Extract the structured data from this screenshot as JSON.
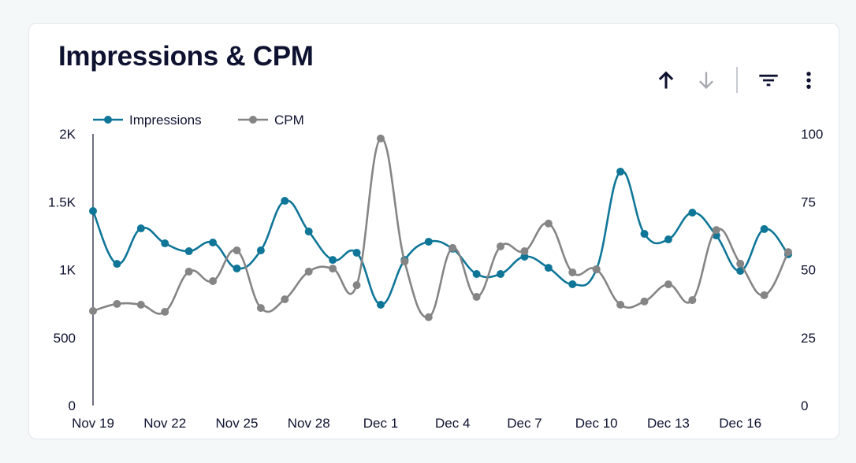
{
  "title": "Impressions & CPM",
  "toolbar": {
    "icons": [
      "arrow-up-icon",
      "arrow-down-icon",
      "filter-icon",
      "more-vert-icon"
    ]
  },
  "chart_data": {
    "type": "line",
    "title": "Impressions & CPM",
    "x": [
      "Nov 19",
      "Nov 20",
      "Nov 21",
      "Nov 22",
      "Nov 23",
      "Nov 24",
      "Nov 25",
      "Nov 26",
      "Nov 27",
      "Nov 28",
      "Nov 29",
      "Nov 30",
      "Dec 1",
      "Dec 2",
      "Dec 3",
      "Dec 4",
      "Dec 5",
      "Dec 6",
      "Dec 7",
      "Dec 8",
      "Dec 9",
      "Dec 10",
      "Dec 11",
      "Dec 12",
      "Dec 13",
      "Dec 14",
      "Dec 15",
      "Dec 16",
      "Dec 17",
      "Dec 18"
    ],
    "x_tick_labels": [
      "Nov 19",
      "Nov 22",
      "Nov 25",
      "Nov 28",
      "Dec 1",
      "Dec 4",
      "Dec 7",
      "Dec 10",
      "Dec 13",
      "Dec 16"
    ],
    "series": [
      {
        "name": "Impressions",
        "axis": "left",
        "color": "#0f7698",
        "values": [
          1432,
          1043,
          1304,
          1194,
          1136,
          1200,
          1009,
          1142,
          1507,
          1281,
          1072,
          1125,
          742,
          1072,
          1206,
          1154,
          968,
          968,
          1096,
          1014,
          893,
          1003,
          1722,
          1264,
          1223,
          1420,
          1252,
          991,
          1299,
          1113
        ]
      },
      {
        "name": "CPM",
        "axis": "right",
        "color": "#858585",
        "values": [
          34.8,
          37.4,
          37.1,
          34.5,
          49.3,
          45.8,
          57.1,
          35.9,
          39.1,
          49.3,
          50.4,
          44.3,
          98.3,
          53.0,
          32.5,
          58.0,
          40.0,
          58.6,
          56.8,
          67.0,
          49.0,
          50.1,
          37.1,
          38.3,
          44.6,
          38.8,
          64.6,
          52.2,
          40.6,
          56.5
        ]
      }
    ],
    "y_left": {
      "range": [
        0,
        2000
      ],
      "ticks": [
        0,
        500,
        1000,
        1500,
        2000
      ],
      "tick_labels": [
        "0",
        "500",
        "1K",
        "1.5K",
        "2K"
      ]
    },
    "y_right": {
      "range": [
        0,
        100
      ],
      "ticks": [
        0,
        25,
        50,
        75,
        100
      ],
      "tick_labels": [
        "0",
        "25",
        "50",
        "75",
        "100"
      ]
    },
    "grid": false,
    "legend": "top-left"
  }
}
